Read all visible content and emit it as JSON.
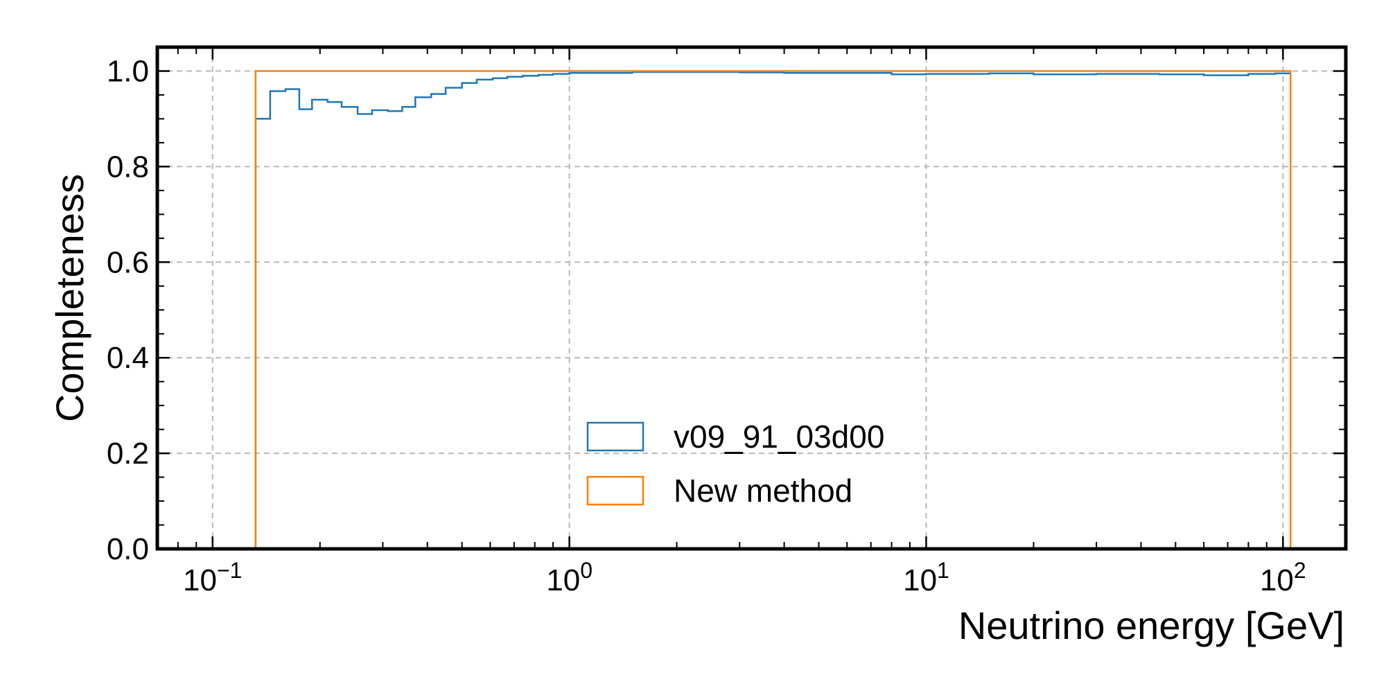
{
  "chart_data": {
    "type": "line",
    "xlabel": "Neutrino energy [GeV]",
    "ylabel": "Completeness",
    "xscale": "log",
    "xlim": [
      0.07,
      150
    ],
    "ylim": [
      0.0,
      1.05
    ],
    "grid": true,
    "legend_position": "lower-center",
    "x_ticks": [
      {
        "value": 0.1,
        "base": "10",
        "exp": "−1"
      },
      {
        "value": 1,
        "base": "10",
        "exp": "0"
      },
      {
        "value": 10,
        "base": "10",
        "exp": "1"
      },
      {
        "value": 100,
        "base": "10",
        "exp": "2"
      }
    ],
    "y_ticks": [
      0.0,
      0.2,
      0.4,
      0.6,
      0.8,
      1.0
    ],
    "y_tick_labels": [
      "0.0",
      "0.2",
      "0.4",
      "0.6",
      "0.8",
      "1.0"
    ],
    "series": [
      {
        "name": "v09_91_03d00",
        "color": "#1f77b4",
        "style": "step",
        "bin_edges": [
          0.132,
          0.145,
          0.16,
          0.175,
          0.19,
          0.21,
          0.23,
          0.255,
          0.28,
          0.31,
          0.34,
          0.37,
          0.41,
          0.45,
          0.5,
          0.55,
          0.61,
          0.67,
          0.74,
          0.82,
          0.9,
          1.0,
          1.5,
          2.0,
          3.0,
          4.0,
          6.0,
          8.0,
          10.0,
          15.0,
          20.0,
          30.0,
          45.0,
          60.0,
          80.0,
          95.0,
          105.0
        ],
        "values": [
          0.9,
          0.958,
          0.962,
          0.92,
          0.94,
          0.935,
          0.925,
          0.91,
          0.918,
          0.916,
          0.925,
          0.945,
          0.952,
          0.965,
          0.975,
          0.982,
          0.985,
          0.988,
          0.99,
          0.992,
          0.994,
          0.996,
          0.998,
          0.998,
          0.997,
          0.996,
          0.996,
          0.993,
          0.994,
          0.995,
          0.993,
          0.994,
          0.993,
          0.991,
          0.994,
          0.995
        ]
      },
      {
        "name": "New method",
        "color": "#ff7f0e",
        "style": "step",
        "bin_edges": [
          0.132,
          105.0
        ],
        "values": [
          1.0
        ]
      }
    ]
  }
}
